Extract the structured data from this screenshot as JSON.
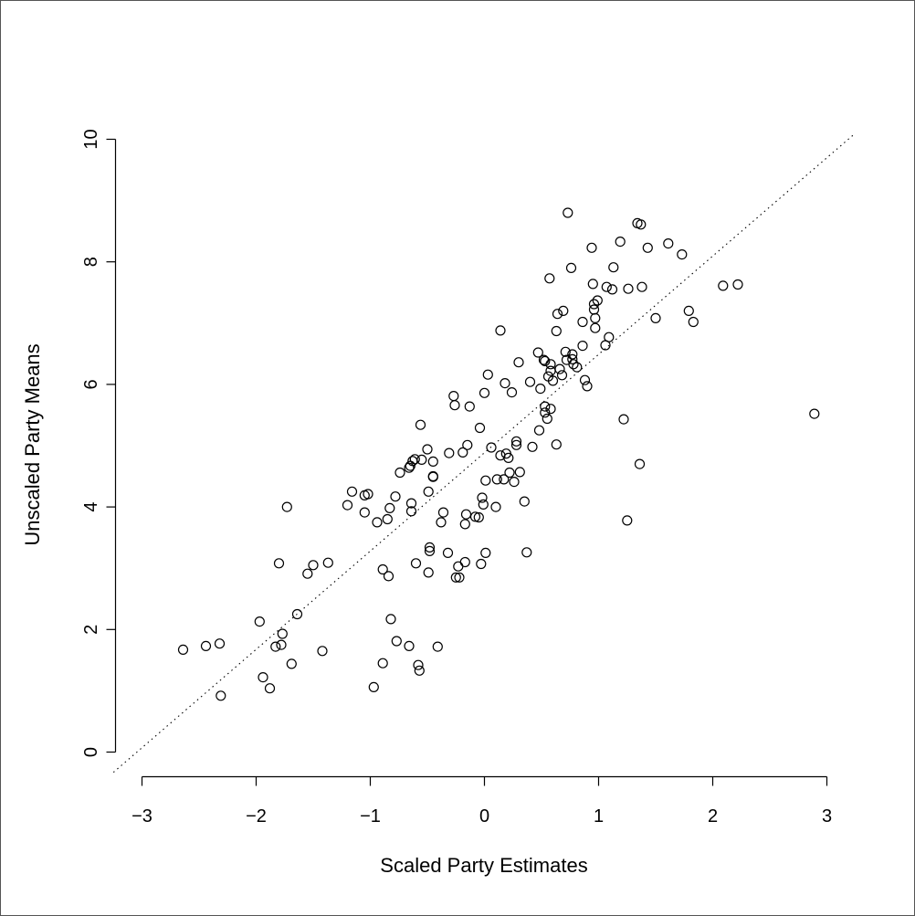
{
  "chart_data": {
    "type": "scatter",
    "title": "",
    "xlabel": "Scaled Party Estimates",
    "ylabel": "Unscaled Party Means",
    "xlim": [
      -3,
      3
    ],
    "ylim": [
      0,
      10
    ],
    "x_ticks": [
      "−3",
      "−2",
      "−1",
      "0",
      "1",
      "2",
      "3"
    ],
    "y_ticks": [
      "0",
      "2",
      "4",
      "6",
      "8",
      "10"
    ],
    "grid": false,
    "legend": "none",
    "reference_line": {
      "style": "dotted",
      "x": [
        -3.25,
        3.25
      ],
      "y": [
        -0.33,
        10.1
      ]
    },
    "points": [
      [
        -2.64,
        1.67
      ],
      [
        -2.44,
        1.73
      ],
      [
        -2.32,
        1.77
      ],
      [
        -2.31,
        0.92
      ],
      [
        -1.97,
        2.13
      ],
      [
        -1.94,
        1.22
      ],
      [
        -1.88,
        1.04
      ],
      [
        -1.83,
        1.72
      ],
      [
        -1.8,
        3.08
      ],
      [
        -1.78,
        1.75
      ],
      [
        -1.77,
        1.93
      ],
      [
        -1.73,
        4.0
      ],
      [
        -1.69,
        1.44
      ],
      [
        -1.64,
        2.25
      ],
      [
        -1.55,
        2.91
      ],
      [
        -1.5,
        3.05
      ],
      [
        -1.42,
        1.65
      ],
      [
        -1.37,
        3.09
      ],
      [
        -1.2,
        4.03
      ],
      [
        -1.16,
        4.25
      ],
      [
        -1.05,
        3.91
      ],
      [
        -1.05,
        4.19
      ],
      [
        -1.02,
        4.21
      ],
      [
        -0.97,
        1.06
      ],
      [
        -0.94,
        3.75
      ],
      [
        -0.89,
        2.98
      ],
      [
        -0.89,
        1.45
      ],
      [
        -0.85,
        3.8
      ],
      [
        -0.84,
        2.87
      ],
      [
        -0.83,
        3.98
      ],
      [
        -0.82,
        2.17
      ],
      [
        -0.78,
        4.17
      ],
      [
        -0.77,
        1.81
      ],
      [
        -0.74,
        4.56
      ],
      [
        -0.66,
        4.64
      ],
      [
        -0.66,
        1.73
      ],
      [
        -0.65,
        4.67
      ],
      [
        -0.64,
        4.06
      ],
      [
        -0.64,
        3.93
      ],
      [
        -0.63,
        4.75
      ],
      [
        -0.61,
        4.78
      ],
      [
        -0.6,
        3.08
      ],
      [
        -0.58,
        1.42
      ],
      [
        -0.57,
        1.33
      ],
      [
        -0.56,
        5.34
      ],
      [
        -0.55,
        4.77
      ],
      [
        -0.5,
        4.94
      ],
      [
        -0.49,
        4.25
      ],
      [
        -0.49,
        2.93
      ],
      [
        -0.48,
        3.28
      ],
      [
        -0.48,
        3.34
      ],
      [
        -0.45,
        4.74
      ],
      [
        -0.45,
        4.49
      ],
      [
        -0.45,
        4.5
      ],
      [
        -0.41,
        1.72
      ],
      [
        -0.38,
        3.75
      ],
      [
        -0.36,
        3.91
      ],
      [
        -0.32,
        3.25
      ],
      [
        -0.31,
        4.88
      ],
      [
        -0.27,
        5.81
      ],
      [
        -0.26,
        5.66
      ],
      [
        -0.25,
        2.85
      ],
      [
        -0.23,
        3.03
      ],
      [
        -0.22,
        2.85
      ],
      [
        -0.19,
        4.89
      ],
      [
        -0.17,
        3.72
      ],
      [
        -0.17,
        3.1
      ],
      [
        -0.16,
        3.88
      ],
      [
        -0.15,
        5.01
      ],
      [
        -0.13,
        5.64
      ],
      [
        -0.08,
        3.84
      ],
      [
        -0.05,
        3.83
      ],
      [
        -0.04,
        5.29
      ],
      [
        -0.03,
        3.07
      ],
      [
        -0.02,
        4.15
      ],
      [
        -0.01,
        4.04
      ],
      [
        0.0,
        5.86
      ],
      [
        0.01,
        4.43
      ],
      [
        0.01,
        3.25
      ],
      [
        0.03,
        6.16
      ],
      [
        0.06,
        4.97
      ],
      [
        0.1,
        4.0
      ],
      [
        0.11,
        4.45
      ],
      [
        0.14,
        6.88
      ],
      [
        0.14,
        4.84
      ],
      [
        0.17,
        4.45
      ],
      [
        0.18,
        6.02
      ],
      [
        0.19,
        4.87
      ],
      [
        0.21,
        4.8
      ],
      [
        0.22,
        4.56
      ],
      [
        0.24,
        5.87
      ],
      [
        0.26,
        4.41
      ],
      [
        0.28,
        5.07
      ],
      [
        0.28,
        5.01
      ],
      [
        0.3,
        6.36
      ],
      [
        0.31,
        4.57
      ],
      [
        0.35,
        4.09
      ],
      [
        0.37,
        3.26
      ],
      [
        0.4,
        6.04
      ],
      [
        0.42,
        4.98
      ],
      [
        0.47,
        6.52
      ],
      [
        0.48,
        5.25
      ],
      [
        0.49,
        5.93
      ],
      [
        0.52,
        6.4
      ],
      [
        0.53,
        6.38
      ],
      [
        0.53,
        5.64
      ],
      [
        0.53,
        5.54
      ],
      [
        0.55,
        5.44
      ],
      [
        0.56,
        6.13
      ],
      [
        0.57,
        7.73
      ],
      [
        0.58,
        6.33
      ],
      [
        0.58,
        6.22
      ],
      [
        0.58,
        5.6
      ],
      [
        0.6,
        6.06
      ],
      [
        0.63,
        5.02
      ],
      [
        0.63,
        6.87
      ],
      [
        0.64,
        7.15
      ],
      [
        0.66,
        6.25
      ],
      [
        0.68,
        6.15
      ],
      [
        0.69,
        7.2
      ],
      [
        0.71,
        6.53
      ],
      [
        0.72,
        6.4
      ],
      [
        0.73,
        8.8
      ],
      [
        0.76,
        7.9
      ],
      [
        0.77,
        6.41
      ],
      [
        0.77,
        6.49
      ],
      [
        0.78,
        6.33
      ],
      [
        0.81,
        6.28
      ],
      [
        0.86,
        7.02
      ],
      [
        0.86,
        6.63
      ],
      [
        0.88,
        6.07
      ],
      [
        0.9,
        5.97
      ],
      [
        0.94,
        8.23
      ],
      [
        0.95,
        7.64
      ],
      [
        0.96,
        7.31
      ],
      [
        0.96,
        7.22
      ],
      [
        0.97,
        6.92
      ],
      [
        0.97,
        7.08
      ],
      [
        0.99,
        7.37
      ],
      [
        1.06,
        6.64
      ],
      [
        1.07,
        7.59
      ],
      [
        1.09,
        6.77
      ],
      [
        1.12,
        7.55
      ],
      [
        1.13,
        7.91
      ],
      [
        1.19,
        8.33
      ],
      [
        1.22,
        5.43
      ],
      [
        1.25,
        3.78
      ],
      [
        1.26,
        7.56
      ],
      [
        1.34,
        8.63
      ],
      [
        1.36,
        4.7
      ],
      [
        1.37,
        8.61
      ],
      [
        1.38,
        7.59
      ],
      [
        1.43,
        8.23
      ],
      [
        1.5,
        7.08
      ],
      [
        1.61,
        8.3
      ],
      [
        1.73,
        8.12
      ],
      [
        1.79,
        7.2
      ],
      [
        1.83,
        7.02
      ],
      [
        2.09,
        7.61
      ],
      [
        2.22,
        7.63
      ],
      [
        2.89,
        5.52
      ]
    ]
  }
}
